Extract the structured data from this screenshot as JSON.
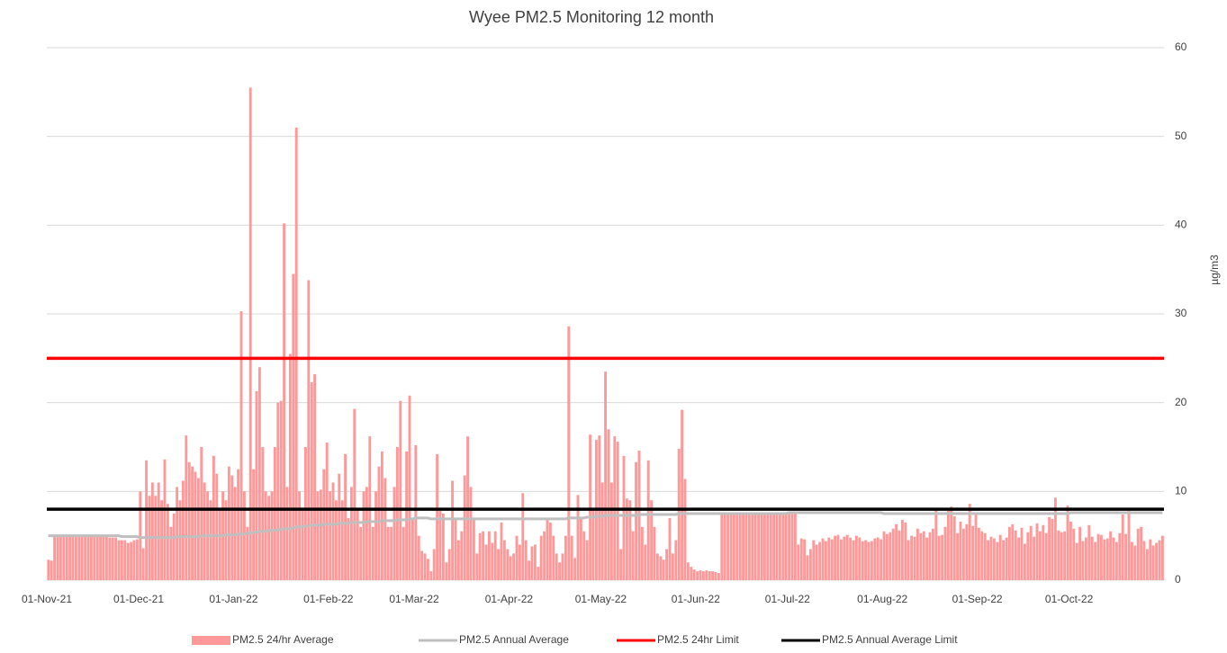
{
  "chart_data": {
    "type": "bar",
    "title": "Wyee PM2.5 Monitoring 12 month",
    "y_axis_label": "µg/m3",
    "categories": [
      "01-Nov-21",
      null,
      null,
      null,
      null,
      null,
      null,
      null,
      null,
      null,
      null,
      null,
      null,
      null,
      null,
      null,
      null,
      null,
      null,
      null,
      null,
      null,
      null,
      null,
      null,
      null,
      null,
      null,
      null,
      null,
      "01-Dec-21",
      null,
      null,
      null,
      null,
      null,
      null,
      null,
      null,
      null,
      null,
      null,
      null,
      null,
      null,
      null,
      null,
      null,
      null,
      null,
      null,
      null,
      null,
      null,
      null,
      null,
      null,
      null,
      null,
      null,
      null,
      "01-Jan-22",
      null,
      null,
      null,
      null,
      null,
      null,
      null,
      null,
      null,
      null,
      null,
      null,
      null,
      null,
      null,
      null,
      null,
      null,
      null,
      null,
      null,
      null,
      null,
      null,
      null,
      null,
      null,
      null,
      null,
      null,
      "01-Feb-22",
      null,
      null,
      null,
      null,
      null,
      null,
      null,
      null,
      null,
      null,
      null,
      null,
      null,
      null,
      null,
      null,
      null,
      null,
      null,
      null,
      null,
      null,
      null,
      null,
      null,
      null,
      null,
      "01-Mar-22",
      null,
      null,
      null,
      null,
      null,
      null,
      null,
      null,
      null,
      null,
      null,
      null,
      null,
      null,
      null,
      null,
      null,
      null,
      null,
      null,
      null,
      null,
      null,
      null,
      null,
      null,
      null,
      null,
      null,
      null,
      "01-Apr-22",
      null,
      null,
      null,
      null,
      null,
      null,
      null,
      null,
      null,
      null,
      null,
      null,
      null,
      null,
      null,
      null,
      null,
      null,
      null,
      null,
      null,
      null,
      null,
      null,
      null,
      null,
      null,
      null,
      null,
      "01-May-22",
      null,
      null,
      null,
      null,
      null,
      null,
      null,
      null,
      null,
      null,
      null,
      null,
      null,
      null,
      null,
      null,
      null,
      null,
      null,
      null,
      null,
      null,
      null,
      null,
      null,
      null,
      null,
      null,
      null,
      null,
      "01-Jun-22",
      null,
      null,
      null,
      null,
      null,
      null,
      null,
      null,
      null,
      null,
      null,
      null,
      null,
      null,
      null,
      null,
      null,
      null,
      null,
      null,
      null,
      null,
      null,
      null,
      null,
      null,
      null,
      null,
      null,
      "01-Jul-22",
      null,
      null,
      null,
      null,
      null,
      null,
      null,
      null,
      null,
      null,
      null,
      null,
      null,
      null,
      null,
      null,
      null,
      null,
      null,
      null,
      null,
      null,
      null,
      null,
      null,
      null,
      null,
      null,
      null,
      null,
      "01-Aug-22",
      null,
      null,
      null,
      null,
      null,
      null,
      null,
      null,
      null,
      null,
      null,
      null,
      null,
      null,
      null,
      null,
      null,
      null,
      null,
      null,
      null,
      null,
      null,
      null,
      null,
      null,
      null,
      null,
      null,
      null,
      "01-Sep-22",
      null,
      null,
      null,
      null,
      null,
      null,
      null,
      null,
      null,
      null,
      null,
      null,
      null,
      null,
      null,
      null,
      null,
      null,
      null,
      null,
      null,
      null,
      null,
      null,
      null,
      null,
      null,
      null,
      null,
      "01-Oct-22",
      null,
      null,
      null,
      null,
      null,
      null,
      null,
      null,
      null,
      null,
      null,
      null,
      null,
      null,
      null,
      null,
      null,
      null,
      null,
      null,
      null,
      null,
      null,
      null,
      null,
      null,
      null,
      null,
      null,
      null
    ],
    "series": [
      {
        "name": "PM2.5 24/hr Average",
        "type": "bar",
        "color": "#ff9999",
        "values": [
          2.3,
          2.2,
          5,
          5,
          5,
          5,
          5,
          5,
          5,
          5,
          5,
          4.9,
          4.9,
          4.9,
          5,
          5,
          5,
          5,
          5,
          5,
          4.8,
          4.8,
          4.8,
          4.5,
          4.5,
          4.5,
          4.2,
          4.3,
          4.5,
          4.6,
          10,
          3.6,
          13.5,
          9.5,
          11,
          9.5,
          11,
          9,
          13.6,
          8.6,
          6,
          7.5,
          10.5,
          9,
          11.2,
          16.3,
          13.3,
          12.8,
          12.2,
          11.5,
          15,
          11,
          10,
          9,
          14,
          12,
          8,
          10,
          9,
          12.8,
          11.8,
          10.5,
          12.5,
          30.3,
          10,
          6,
          55.5,
          12.5,
          21.3,
          24,
          15,
          10,
          9.5,
          10,
          15,
          20,
          20.2,
          40.2,
          10.5,
          25.5,
          34.5,
          51,
          10,
          8,
          15,
          33.8,
          22.3,
          23.2,
          10,
          10.2,
          12.5,
          15.5,
          10,
          11,
          9,
          12,
          9,
          14.2,
          7,
          10.5,
          19.3,
          8,
          6,
          10,
          10.5,
          16.2,
          6,
          10,
          12.8,
          14.5,
          11.5,
          6,
          6,
          10.5,
          15,
          20.2,
          6,
          14.5,
          20.8,
          7,
          15.2,
          5,
          3.3,
          3,
          2.4,
          1,
          3.5,
          14.2,
          7.8,
          7.5,
          2,
          3.5,
          11.2,
          7,
          4.5,
          5.5,
          11.8,
          16.2,
          10.5,
          7,
          3,
          5.3,
          5.5,
          4,
          5.5,
          4.2,
          5.5,
          3.5,
          6.5,
          4.5,
          3.5,
          2.7,
          3,
          5,
          4,
          9.8,
          4.5,
          2.2,
          3.8,
          4,
          1.5,
          5,
          5.5,
          7,
          6.5,
          5,
          3,
          2,
          3,
          5,
          28.6,
          5,
          2.5,
          9.6,
          7,
          5.5,
          4.5,
          16.4,
          8,
          15.8,
          16.3,
          11,
          23.5,
          17,
          11,
          16.2,
          15.6,
          3.5,
          14,
          9.2,
          9,
          5.5,
          13.3,
          14.6,
          6,
          4,
          13.5,
          9,
          6,
          3,
          2.7,
          2.3,
          3.5,
          7,
          3,
          4.5,
          14.8,
          19.2,
          11.4,
          2,
          1.5,
          1.2,
          1,
          1.1,
          1,
          1.1,
          1,
          1,
          0.9,
          0.8,
          7.6,
          7.6,
          7.6,
          7.5,
          7.6,
          7.6,
          7.5,
          7.6,
          7.6,
          7.6,
          7.6,
          7.6,
          7.5,
          7.6,
          7.6,
          7.6,
          7.6,
          7.5,
          7.6,
          7.6,
          7.6,
          7.5,
          7.5,
          7.5,
          7.5,
          4,
          4.7,
          4.6,
          2.8,
          3.5,
          4.5,
          4,
          4.3,
          4.7,
          4.4,
          4.8,
          4.6,
          5,
          5.1,
          4.6,
          4.9,
          5.1,
          4.8,
          4.5,
          5,
          4.8,
          4.4,
          4.5,
          4.3,
          4.4,
          4.7,
          4.8,
          4.6,
          5.5,
          5.2,
          5.4,
          5.8,
          6.3,
          5.6,
          6.8,
          6.5,
          4.5,
          5,
          4.9,
          5.8,
          5.3,
          5.5,
          4.8,
          5.4,
          5.8,
          8,
          5,
          5.1,
          6,
          7.8,
          8.3,
          7.2,
          5.3,
          6.6,
          5.8,
          6.3,
          8.6,
          6.1,
          7.5,
          5.9,
          5.5,
          5.3,
          4.5,
          4.9,
          4.7,
          4.3,
          5.1,
          4.5,
          4.8,
          6,
          6.3,
          5.6,
          4.8,
          5.9,
          4.1,
          5.4,
          6.1,
          4.9,
          6.4,
          5.5,
          6.2,
          5.3,
          7.1,
          6.9,
          9.3,
          5.6,
          5.4,
          5.5,
          8.4,
          6.6,
          5.8,
          4.2,
          6,
          4.4,
          4.8,
          6.2,
          4.9,
          4.3,
          5.2,
          5.1,
          4.6,
          4.7,
          5.5,
          4.8,
          4.3,
          5.3,
          7.4,
          5.2,
          7.8,
          4.3,
          3.9,
          5.8,
          6,
          4.4,
          3.5,
          4.6,
          3.9,
          4.2,
          4.5,
          5
        ]
      },
      {
        "name": "PM2.5 Annual Average",
        "type": "line",
        "color": "#bfbfbf",
        "values": [
          5,
          5,
          5,
          5,
          5,
          5,
          5,
          5,
          5,
          5,
          5,
          5,
          5,
          5,
          5,
          5,
          5,
          5,
          5,
          5,
          5,
          5,
          5,
          5,
          4.9,
          4.9,
          4.9,
          4.9,
          4.9,
          4.9,
          4.8,
          4.8,
          4.8,
          4.8,
          4.8,
          4.8,
          4.8,
          4.8,
          4.8,
          4.8,
          4.8,
          4.8,
          4.9,
          4.9,
          4.9,
          4.9,
          4.9,
          4.9,
          4.9,
          4.9,
          5,
          5,
          5,
          5,
          5,
          5,
          5,
          5,
          5.1,
          5.1,
          5.1,
          5.1,
          5.2,
          5.2,
          5.2,
          5.3,
          5.3,
          5.4,
          5.4,
          5.5,
          5.5,
          5.5,
          5.6,
          5.6,
          5.6,
          5.7,
          5.7,
          5.8,
          5.8,
          5.8,
          5.9,
          6,
          6,
          6,
          6.1,
          6.1,
          6.2,
          6.2,
          6.2,
          6.2,
          6.3,
          6.3,
          6.3,
          6.3,
          6.3,
          6.4,
          6.4,
          6.4,
          6.4,
          6.5,
          6.5,
          6.5,
          6.5,
          6.5,
          6.6,
          6.6,
          6.6,
          6.6,
          6.6,
          6.7,
          6.7,
          6.7,
          6.7,
          6.7,
          6.8,
          6.8,
          6.8,
          6.8,
          6.9,
          6.9,
          7,
          7,
          7,
          7,
          7,
          6.9,
          6.9,
          6.9,
          6.9,
          6.9,
          6.9,
          6.9,
          6.9,
          6.9,
          6.9,
          6.9,
          6.9,
          6.9,
          6.9,
          6.9,
          6.9,
          6.9,
          6.9,
          6.9,
          6.9,
          6.9,
          6.9,
          6.9,
          6.9,
          6.9,
          6.9,
          6.9,
          6.9,
          6.9,
          6.9,
          6.9,
          6.9,
          6.9,
          6.9,
          6.9,
          6.9,
          6.9,
          6.9,
          6.9,
          6.9,
          6.9,
          6.9,
          6.9,
          6.9,
          6.9,
          7,
          7,
          7,
          7,
          7,
          7,
          7.1,
          7.1,
          7.1,
          7.2,
          7.2,
          7.2,
          7.3,
          7.3,
          7.3,
          7.3,
          7.3,
          7.3,
          7.3,
          7.3,
          7.3,
          7.3,
          7.3,
          7.4,
          7.4,
          7.4,
          7.4,
          7.4,
          7.4,
          7.4,
          7.4,
          7.4,
          7.4,
          7.4,
          7.4,
          7.4,
          7.5,
          7.5,
          7.5,
          7.5,
          7.5,
          7.5,
          7.5,
          7.5,
          7.5,
          7.5,
          7.5,
          7.5,
          7.5,
          7.5,
          7.5,
          7.5,
          7.5,
          7.5,
          7.5,
          7.5,
          7.5,
          7.5,
          7.5,
          7.5,
          7.5,
          7.5,
          7.5,
          7.5,
          7.5,
          7.5,
          7.5,
          7.5,
          7.5,
          7.5,
          7.5,
          7.5,
          7.6,
          7.6,
          7.6,
          7.6,
          7.6,
          7.6,
          7.6,
          7.6,
          7.6,
          7.6,
          7.6,
          7.6,
          7.6,
          7.6,
          7.6,
          7.6,
          7.6,
          7.6,
          7.6,
          7.6,
          7.6,
          7.6,
          7.6,
          7.6,
          7.6,
          7.6,
          7.6,
          7.6,
          7.6,
          7.6,
          7.6,
          7.5,
          7.5,
          7.5,
          7.5,
          7.5,
          7.5,
          7.5,
          7.5,
          7.5,
          7.5,
          7.5,
          7.5,
          7.5,
          7.5,
          7.5,
          7.5,
          7.5,
          7.5,
          7.5,
          7.5,
          7.5,
          7.5,
          7.5,
          7.5,
          7.5,
          7.5,
          7.5,
          7.5,
          7.5,
          7.5,
          7.5,
          7.5,
          7.5,
          7.5,
          7.5,
          7.5,
          7.5,
          7.5,
          7.5,
          7.5,
          7.5,
          7.5,
          7.5,
          7.5,
          7.5,
          7.5,
          7.5,
          7.5,
          7.5,
          7.5,
          7.5,
          7.5,
          7.5,
          7.5,
          7.5,
          7.5,
          7.5,
          7.5,
          7.5,
          7.5,
          7.5,
          7.6,
          7.6,
          7.6,
          7.6,
          7.6,
          7.6,
          7.6,
          7.6,
          7.6,
          7.6,
          7.6,
          7.6,
          7.6,
          7.6,
          7.6,
          7.6,
          7.6,
          7.6,
          7.6,
          7.6,
          7.6,
          7.6,
          7.6,
          7.6,
          7.6,
          7.6,
          7.6,
          7.6,
          7.6,
          7.6,
          7.6
        ]
      }
    ],
    "reference_lines": [
      {
        "name": "PM2.5 24hr Limit",
        "color": "#ff0000",
        "value": 25
      },
      {
        "name": "PM2.5 Annual Average Limit",
        "color": "#000000",
        "value": 8
      }
    ],
    "ylim": [
      0,
      60
    ],
    "yticks": [
      0,
      10,
      20,
      30,
      40,
      50,
      60
    ],
    "grid": true,
    "legend": "bottom"
  }
}
